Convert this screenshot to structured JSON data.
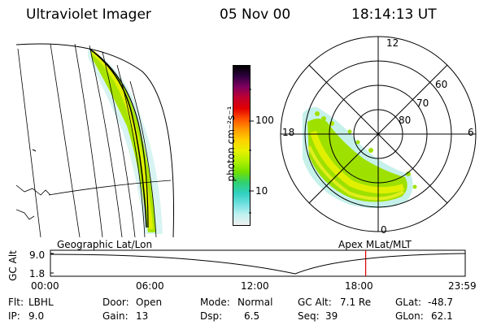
{
  "header": {
    "instrument": "Ultraviolet Imager",
    "date": "05 Nov 00",
    "time": "18:14:13 UT"
  },
  "geo_panel": {
    "label": "Geographic Lat/Lon"
  },
  "polar_panel": {
    "label": "Apex MLat/MLT",
    "mlt_labels": [
      "12",
      "18",
      "6",
      "0"
    ],
    "lat_labels": [
      "60",
      "70",
      "80"
    ]
  },
  "colorbar": {
    "unit_label": "photon cm⁻²s⁻¹",
    "ticks": [
      "100",
      "10"
    ],
    "colors": [
      "#000000",
      "#300040",
      "#800060",
      "#c00030",
      "#e00000",
      "#ff5000",
      "#ff9a00",
      "#ffd000",
      "#e8f000",
      "#b0f000",
      "#70e000",
      "#30d070",
      "#30d0c0",
      "#70e0e0",
      "#bff0f0",
      "#f0f0f0"
    ]
  },
  "altitude_plot": {
    "y_axis_label": "GC Alt",
    "y_ticks": [
      "9.0",
      "1.8"
    ],
    "x_ticks": [
      "00:00",
      "06:00",
      "12:00",
      "18:00",
      "23:59"
    ],
    "current_time_hours": 18.24,
    "marker_color": "#dd0000"
  },
  "info": {
    "filter_label": "Flt:",
    "filter_value": "LBHL",
    "ip_label": "IP:",
    "ip_value": "9.0",
    "door_label": "Door:",
    "door_value": "Open",
    "gain_label": "Gain:",
    "gain_value": "13",
    "mode_label": "Mode:",
    "mode_value": "Normal",
    "dsp_label": "Dsp:",
    "dsp_value": "6.5",
    "gcalt_label": "GC Alt:",
    "gcalt_value": "7.1 Re",
    "seq_label": "Seq:",
    "seq_value": "39",
    "glat_label": "GLat:",
    "glat_value": "-48.7",
    "glon_label": "GLon:",
    "glon_value": "62.1"
  }
}
